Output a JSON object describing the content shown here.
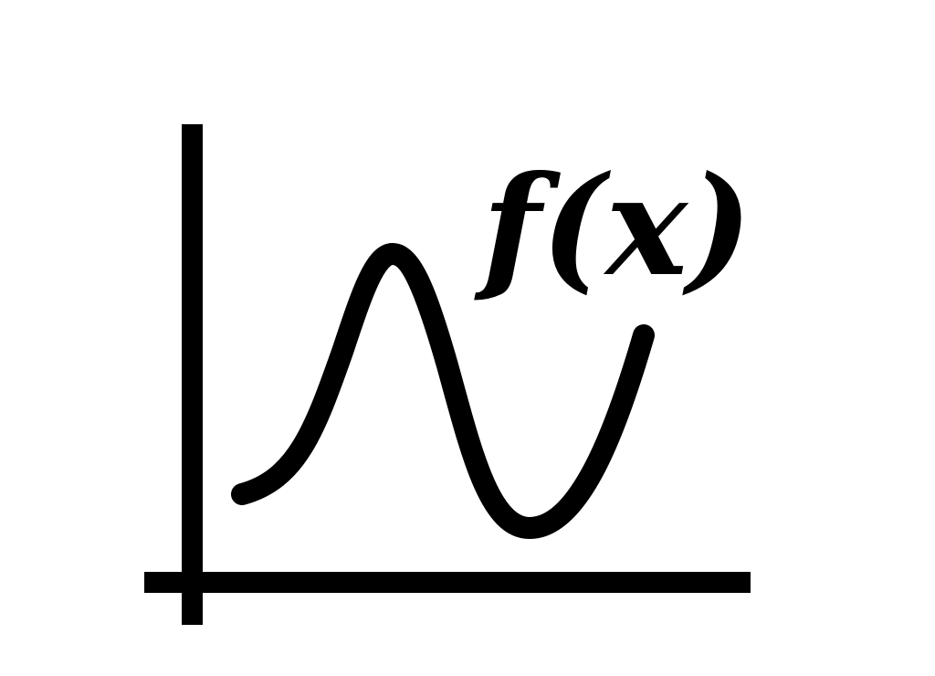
{
  "label": {
    "text": "f(x)"
  },
  "colors": {
    "ink": "#000000",
    "background": "#ffffff"
  }
}
